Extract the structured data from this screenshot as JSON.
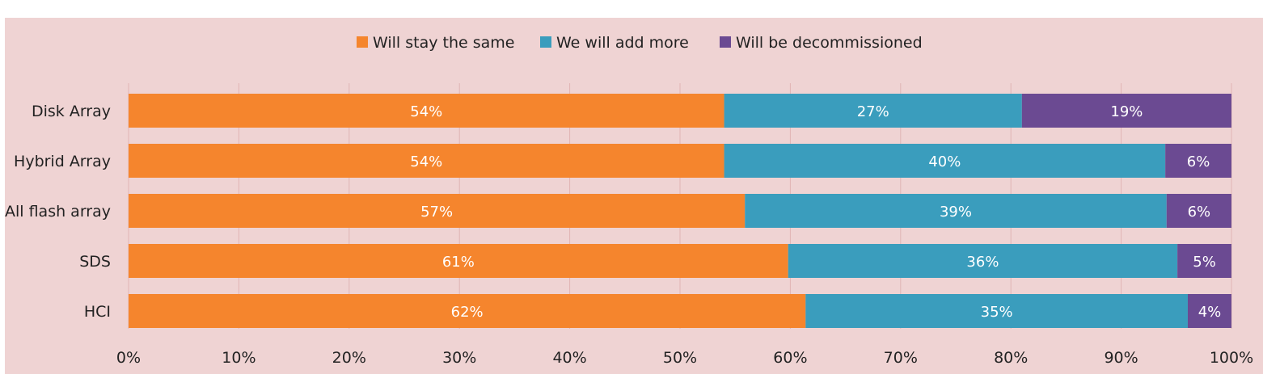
{
  "chart_data": {
    "type": "bar",
    "orientation": "horizontal",
    "stacked": true,
    "categories": [
      "Disk Array",
      "Hybrid Array",
      "All flash array",
      "SDS",
      "HCI"
    ],
    "series": [
      {
        "name": "Will stay the same",
        "color": "#f5852d",
        "values": [
          54,
          54,
          57,
          61,
          62
        ],
        "labels": [
          "54%",
          "54%",
          "57%",
          "61%",
          "62%"
        ]
      },
      {
        "name": "We will add more",
        "color": "#3a9dbd",
        "values": [
          27,
          40,
          39,
          36,
          35
        ],
        "labels": [
          "27%",
          "40%",
          "39%",
          "36%",
          "35%"
        ]
      },
      {
        "name": "Will be decommissioned",
        "color": "#6b4a92",
        "values": [
          19,
          6,
          6,
          5,
          4
        ],
        "labels": [
          "19%",
          "6%",
          "6%",
          "5%",
          "4%"
        ]
      }
    ],
    "xlim": [
      0,
      100
    ],
    "xticks": [
      "0%",
      "10%",
      "20%",
      "30%",
      "40%",
      "50%",
      "60%",
      "70%",
      "80%",
      "90%",
      "100%"
    ],
    "grid": true,
    "legend_position": "top",
    "background": "#efd3d3",
    "grid_color": "#e0b4b4"
  }
}
